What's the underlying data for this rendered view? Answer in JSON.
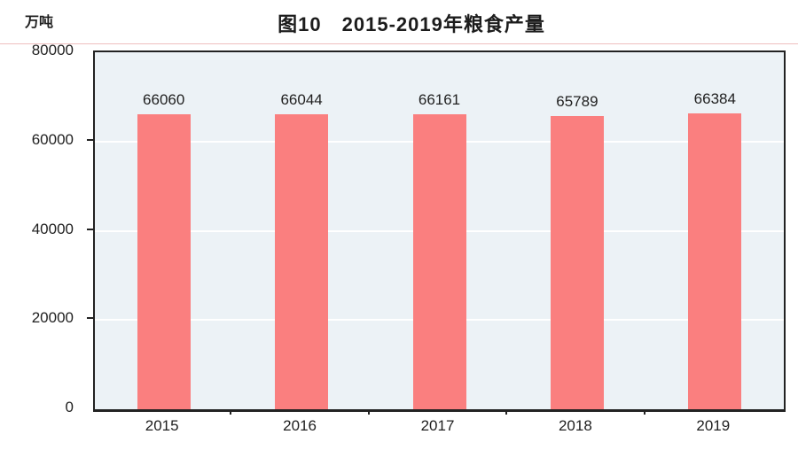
{
  "title": "图10　2015-2019年粮食产量",
  "unit_label": "万吨",
  "colors": {
    "bar": "#fa7f7f",
    "plot_background": "#ecf2f6",
    "gridline": "#ffffff",
    "title_underline": "#eebfbf",
    "axis": "#222222",
    "text": "#1f1f1f"
  },
  "chart_data": {
    "type": "bar",
    "title": "图10　2015-2019年粮食产量",
    "ylabel": "万吨",
    "xlabel": "",
    "categories": [
      "2015",
      "2016",
      "2017",
      "2018",
      "2019"
    ],
    "values": [
      66060,
      66044,
      66161,
      65789,
      66384
    ],
    "data_labels": [
      "66060",
      "66044",
      "66161",
      "65789",
      "66384"
    ],
    "ylim": [
      0,
      80000
    ],
    "yticks": [
      0,
      20000,
      40000,
      60000,
      80000
    ],
    "ytick_labels": [
      "0",
      "20000",
      "40000",
      "60000",
      "80000"
    ],
    "grid": true,
    "legend": "none",
    "plot_background": "#ecf2f6",
    "bar_color": "#fa7f7f"
  }
}
